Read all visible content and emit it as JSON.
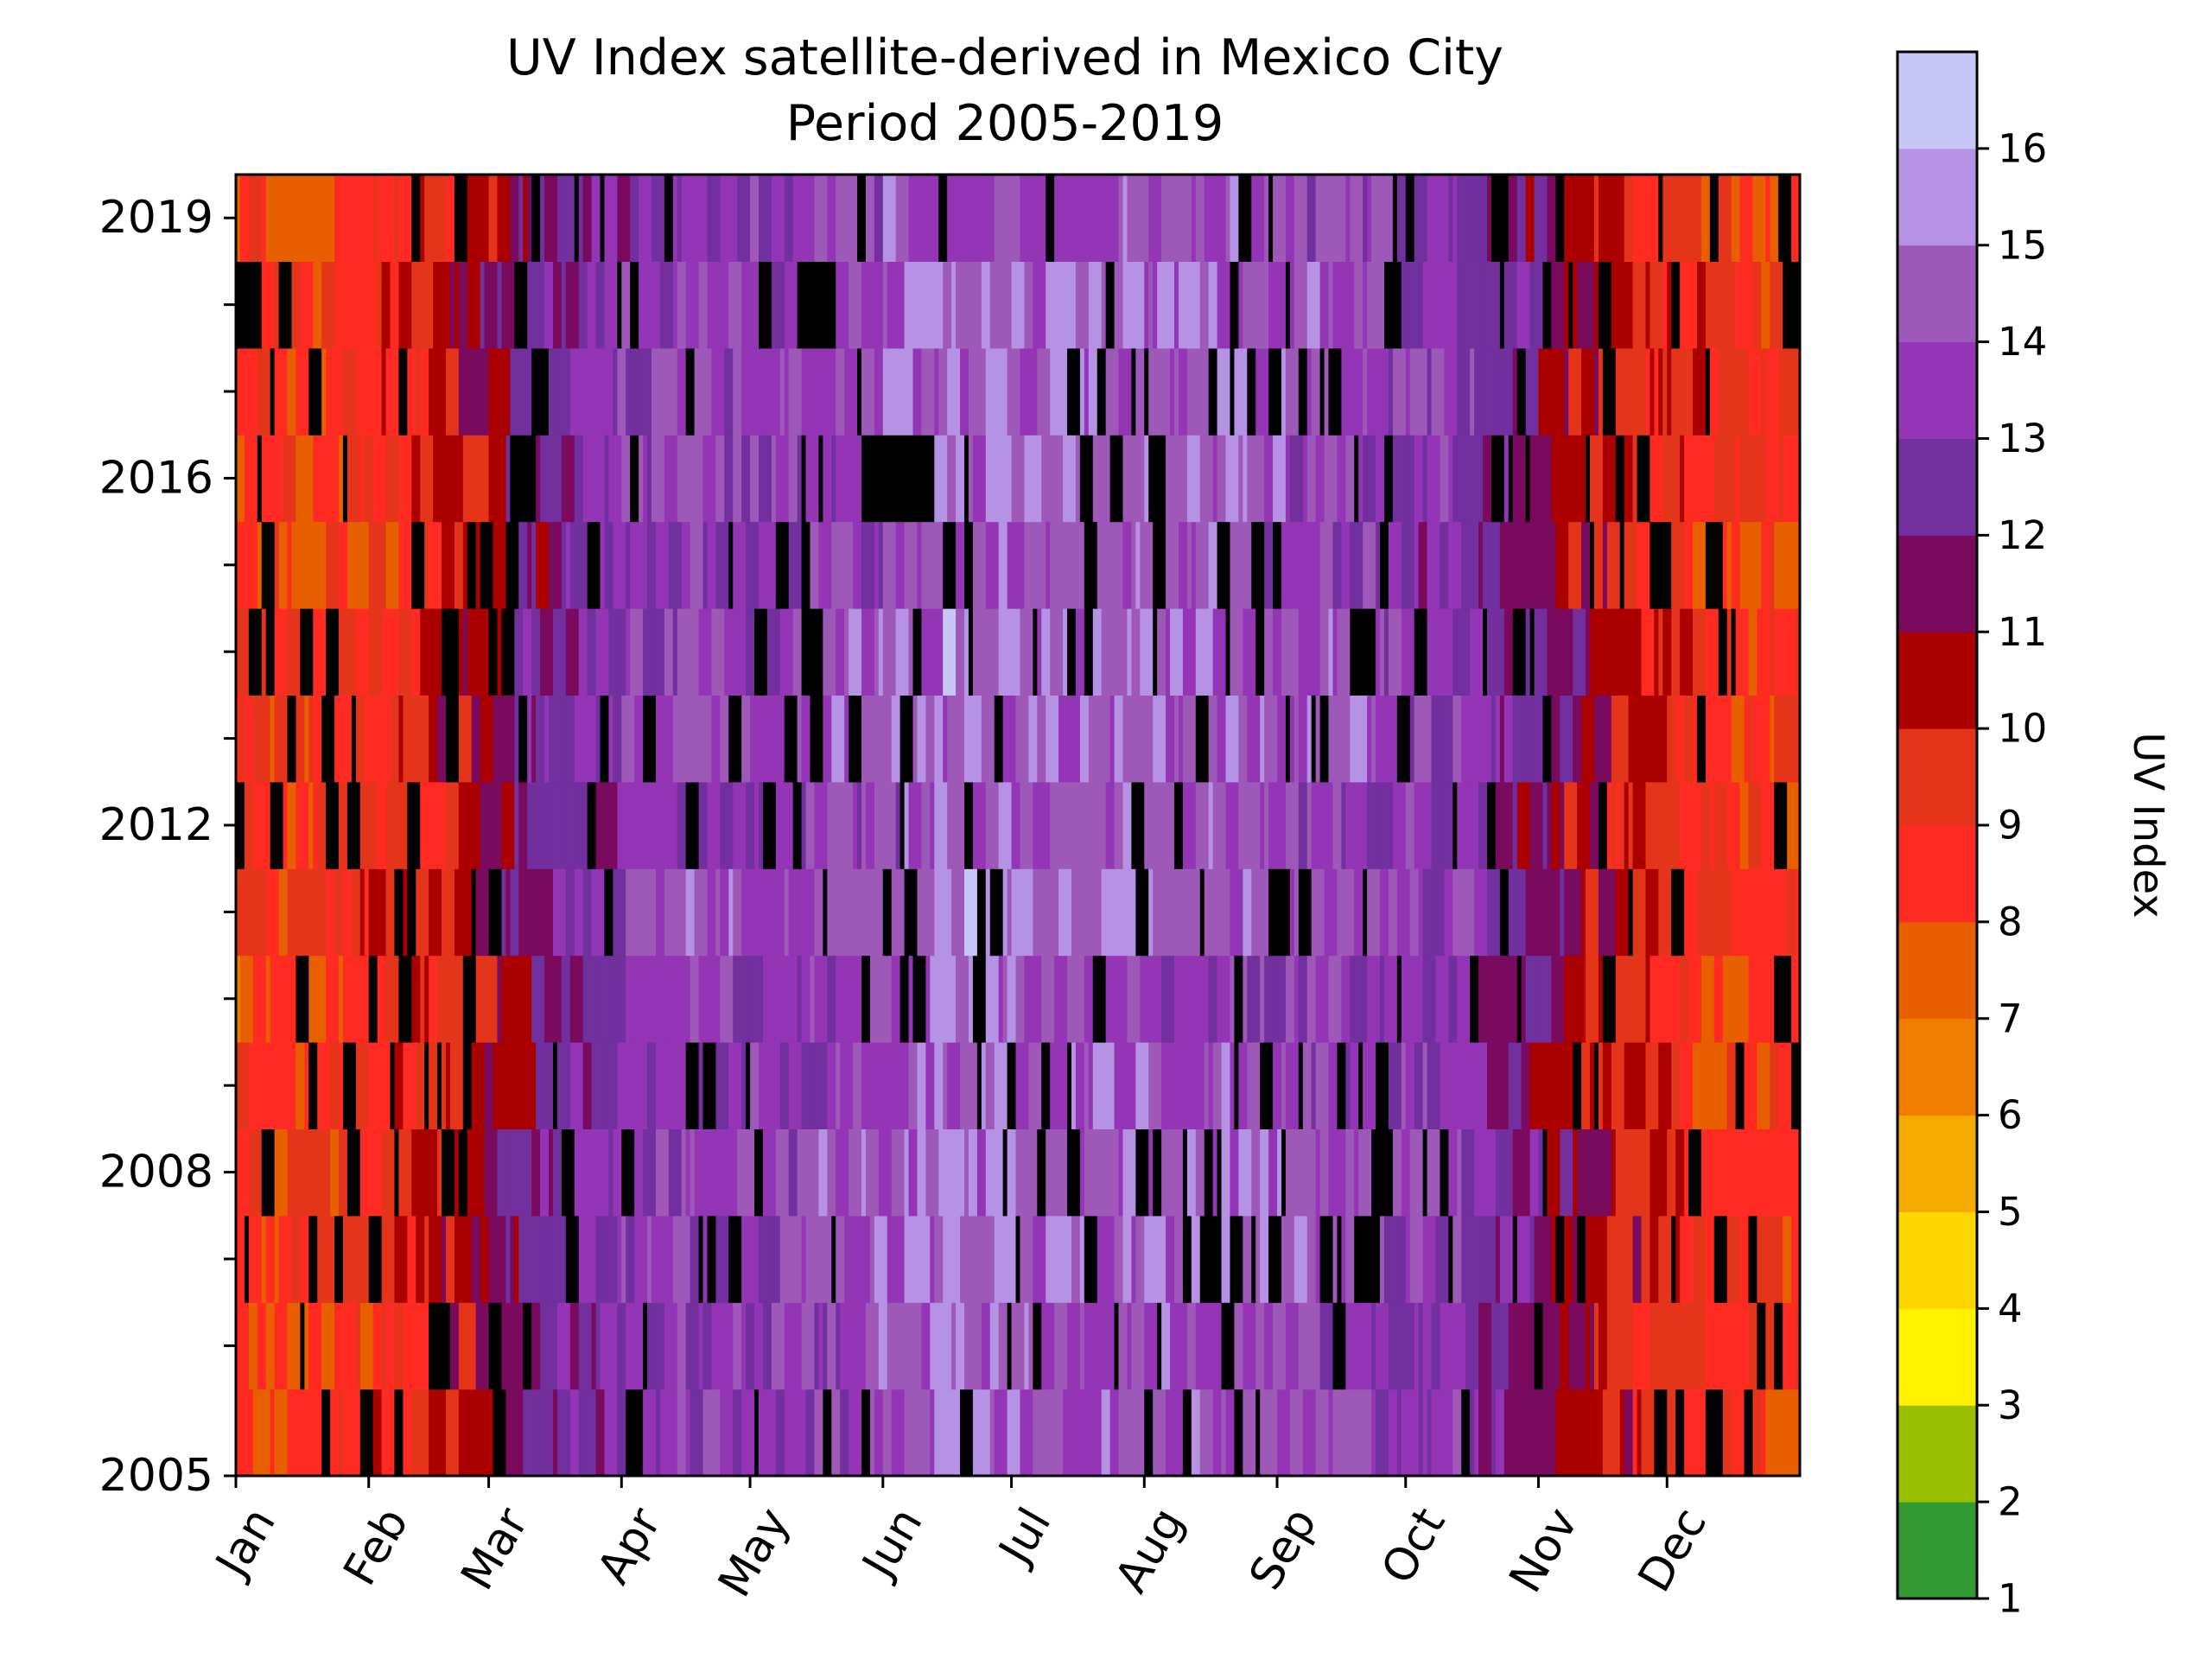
{
  "chart_data": {
    "type": "heatmap",
    "title": "UV Index satellite-derived in Mexico City",
    "subtitle": "Period 2005-2019",
    "xlabel": "",
    "ylabel": "",
    "x_tick_labels": [
      "Jan",
      "Feb",
      "Mar",
      "Apr",
      "May",
      "Jun",
      "Jul",
      "Aug",
      "Sep",
      "Oct",
      "Nov",
      "Dec"
    ],
    "month_lengths": [
      31,
      28,
      31,
      30,
      31,
      30,
      31,
      31,
      30,
      31,
      30,
      31
    ],
    "years": [
      2005,
      2006,
      2007,
      2008,
      2009,
      2010,
      2011,
      2012,
      2013,
      2014,
      2015,
      2016,
      2017,
      2018,
      2019
    ],
    "y_tick_labels": [
      "2005",
      "2008",
      "2012",
      "2016",
      "2019"
    ],
    "ylim": [
      2005,
      2020
    ],
    "colorbar": {
      "label": "UV Index",
      "range": [
        1,
        17
      ],
      "ticks": [
        "1",
        "2",
        "3",
        "4",
        "5",
        "6",
        "7",
        "8",
        "9",
        "10",
        "11",
        "12",
        "13",
        "14",
        "15",
        "16"
      ],
      "colors": [
        "#339933",
        "#99bf00",
        "#fff200",
        "#ffd500",
        "#f5aa00",
        "#f07d00",
        "#e85f00",
        "#ff2a22",
        "#e4351a",
        "#aa0000",
        "#7a0a5e",
        "#722f9e",
        "#9335b5",
        "#9e59b8",
        "#b592e3",
        "#c7c7f7"
      ]
    },
    "missing_color": "#000000",
    "seasonal_profile_by_month": [
      8.5,
      9.8,
      12.5,
      13.8,
      13.8,
      14.8,
      14.6,
      14.5,
      13.9,
      13.2,
      10.5,
      8.7
    ],
    "notable_missing_blocks": [
      {
        "year": 2016,
        "days": "May 27 - Jun 11"
      },
      {
        "year": 2017,
        "days": "Mar 10 - Mar 14"
      },
      {
        "year": 2008,
        "days": "Sep 24 - Sep 26"
      }
    ]
  }
}
